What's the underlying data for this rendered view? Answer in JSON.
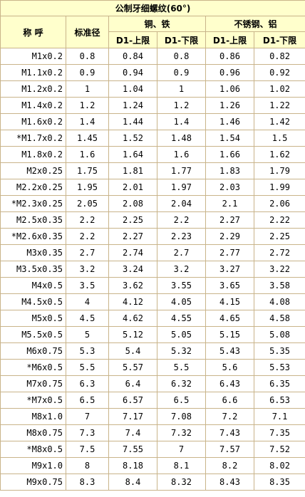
{
  "table": {
    "title": "公制牙细螺纹(60°)",
    "headers": {
      "name": "称 呼",
      "nominal": "标准径",
      "group_copper": "铜、铁",
      "group_steel": "不锈钢、铝",
      "d1_upper": "D1-上限",
      "d1_lower": "D1-下限"
    },
    "rows": [
      [
        "M1x0.2",
        "0.8",
        "0.84",
        "0.8",
        "0.86",
        "0.82"
      ],
      [
        "M1.1x0.2",
        "0.9",
        "0.94",
        "0.9",
        "0.96",
        "0.92"
      ],
      [
        "M1.2x0.2",
        "1",
        "1.04",
        "1",
        "1.06",
        "1.02"
      ],
      [
        "M1.4x0.2",
        "1.2",
        "1.24",
        "1.2",
        "1.26",
        "1.22"
      ],
      [
        "M1.6x0.2",
        "1.4",
        "1.44",
        "1.4",
        "1.46",
        "1.42"
      ],
      [
        "*M1.7x0.2",
        "1.45",
        "1.52",
        "1.48",
        "1.54",
        "1.5"
      ],
      [
        "M1.8x0.2",
        "1.6",
        "1.64",
        "1.6",
        "1.66",
        "1.62"
      ],
      [
        "M2x0.25",
        "1.75",
        "1.81",
        "1.77",
        "1.83",
        "1.79"
      ],
      [
        "M2.2x0.25",
        "1.95",
        "2.01",
        "1.97",
        "2.03",
        "1.99"
      ],
      [
        "*M2.3x0.25",
        "2.05",
        "2.08",
        "2.04",
        "2.1",
        "2.06"
      ],
      [
        "M2.5x0.35",
        "2.2",
        "2.25",
        "2.2",
        "2.27",
        "2.22"
      ],
      [
        "*M2.6x0.35",
        "2.2",
        "2.27",
        "2.23",
        "2.29",
        "2.25"
      ],
      [
        "M3x0.35",
        "2.7",
        "2.74",
        "2.7",
        "2.77",
        "2.72"
      ],
      [
        "M3.5x0.35",
        "3.2",
        "3.24",
        "3.2",
        "3.27",
        "3.22"
      ],
      [
        "M4x0.5",
        "3.5",
        "3.62",
        "3.55",
        "3.65",
        "3.58"
      ],
      [
        "M4.5x0.5",
        "4",
        "4.12",
        "4.05",
        "4.15",
        "4.08"
      ],
      [
        "M5x0.5",
        "4.5",
        "4.62",
        "4.55",
        "4.65",
        "4.58"
      ],
      [
        "M5.5x0.5",
        "5",
        "5.12",
        "5.05",
        "5.15",
        "5.08"
      ],
      [
        "M6x0.75",
        "5.3",
        "5.4",
        "5.32",
        "5.43",
        "5.35"
      ],
      [
        "*M6x0.5",
        "5.5",
        "5.57",
        "5.5",
        "5.6",
        "5.53"
      ],
      [
        "M7x0.75",
        "6.3",
        "6.4",
        "6.32",
        "6.43",
        "6.35"
      ],
      [
        "*M7x0.5",
        "6.5",
        "6.57",
        "6.5",
        "6.6",
        "6.53"
      ],
      [
        "M8x1.0",
        "7",
        "7.17",
        "7.08",
        "7.2",
        "7.1"
      ],
      [
        "M8x0.75",
        "7.3",
        "7.4",
        "7.32",
        "7.43",
        "7.35"
      ],
      [
        "*M8x0.5",
        "7.5",
        "7.55",
        "7",
        "7.57",
        "7.52"
      ],
      [
        "M9x1.0",
        "8",
        "8.18",
        "8.1",
        "8.2",
        "8.02"
      ],
      [
        "M9x0.75",
        "8.3",
        "8.4",
        "8.32",
        "8.43",
        "8.35"
      ]
    ]
  },
  "colors": {
    "header_bg": "#ffffcc",
    "grid_line": "#c9b48a",
    "text": "#000000"
  }
}
